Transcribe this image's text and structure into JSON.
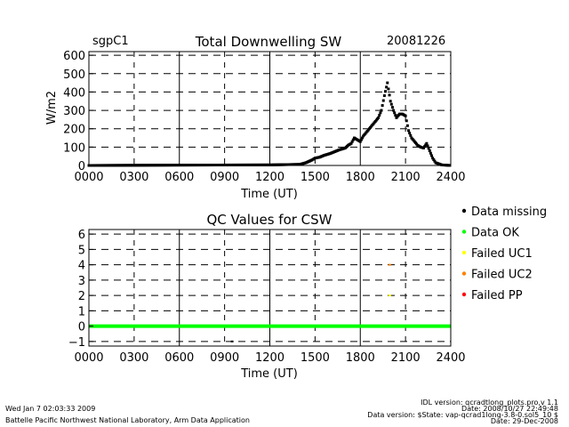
{
  "header": {
    "site": "sgpC1",
    "date": "20081226"
  },
  "chart_data": [
    {
      "type": "scatter",
      "title": "Total Downwelling SW",
      "xlabel": "Time (UT)",
      "ylabel": "W/m2",
      "xlim": [
        0,
        2400
      ],
      "ylim": [
        0,
        620
      ],
      "x_ticks": [
        0,
        300,
        600,
        900,
        1200,
        1500,
        1800,
        2100,
        2400
      ],
      "x_tick_labels": [
        "0000",
        "0300",
        "0600",
        "0900",
        "1200",
        "1500",
        "1800",
        "2100",
        "2400"
      ],
      "y_ticks": [
        0,
        100,
        200,
        300,
        400,
        500,
        600
      ],
      "y_tick_labels": [
        "0",
        "100",
        "200",
        "300",
        "400",
        "500",
        "600"
      ],
      "grid": true,
      "series": [
        {
          "name": "Total Downwelling SW",
          "x": [
            0,
            600,
            1200,
            1400,
            1440,
            1480,
            1500,
            1530,
            1560,
            1600,
            1630,
            1660,
            1700,
            1720,
            1740,
            1760,
            1780,
            1800,
            1820,
            1840,
            1860,
            1880,
            1900,
            1920,
            1940,
            1960,
            1980,
            2000,
            2020,
            2040,
            2060,
            2080,
            2100,
            2120,
            2140,
            2160,
            2180,
            2200,
            2220,
            2240,
            2260,
            2280,
            2300,
            2340,
            2400
          ],
          "y": [
            0,
            2,
            3,
            6,
            15,
            30,
            40,
            45,
            55,
            65,
            75,
            85,
            95,
            110,
            120,
            150,
            140,
            130,
            160,
            180,
            200,
            220,
            240,
            260,
            300,
            380,
            450,
            350,
            300,
            260,
            280,
            280,
            270,
            190,
            150,
            130,
            110,
            100,
            95,
            120,
            80,
            40,
            15,
            3,
            0
          ]
        }
      ]
    },
    {
      "type": "scatter",
      "title": "QC Values for CSW",
      "xlabel": "Time (UT)",
      "ylabel": "",
      "xlim": [
        0,
        2400
      ],
      "ylim": [
        -1.3,
        6.3
      ],
      "x_ticks": [
        0,
        300,
        600,
        900,
        1200,
        1500,
        1800,
        2100,
        2400
      ],
      "x_tick_labels": [
        "0000",
        "0300",
        "0600",
        "0900",
        "1200",
        "1500",
        "1800",
        "2100",
        "2400"
      ],
      "y_ticks": [
        -1,
        0,
        1,
        2,
        3,
        4,
        5,
        6
      ],
      "y_tick_labels": [
        "−1",
        "0",
        "1",
        "2",
        "3",
        "4",
        "5",
        "6"
      ],
      "grid": true,
      "series": [
        {
          "name": "Data OK",
          "color": "#00ff00",
          "line": {
            "x": [
              0,
              2400
            ],
            "y": [
              0,
              0
            ]
          }
        },
        {
          "name": "Data missing",
          "color": "#000000",
          "points": [
            {
              "x": 950,
              "y": -1
            }
          ]
        },
        {
          "name": "Failed UC1",
          "color": "#ffff00",
          "points": [
            {
              "x": 1995,
              "y": 2
            }
          ]
        },
        {
          "name": "Failed UC2",
          "color": "#ff8000",
          "points": [
            {
              "x": 1995,
              "y": 4
            }
          ]
        }
      ]
    }
  ],
  "legend": [
    {
      "label": "Data missing",
      "color": "#000000"
    },
    {
      "label": "Data OK",
      "color": "#00ff00"
    },
    {
      "label": "Failed UC1",
      "color": "#ffff00"
    },
    {
      "label": "Failed UC2",
      "color": "#ff8000"
    },
    {
      "label": "Failed PP",
      "color": "#ff0000"
    }
  ],
  "footer": {
    "timestamp": "Wed Jan  7 02:03:33 2009",
    "org": "Battelle Pacific Northwest National Laboratory, Arm Data Application",
    "idl_version": "IDL version: qcradtlong_plots.pro,v 1.1",
    "idl_date": "Date: 2008/10/27 22:49:48",
    "data_version": "Data version: $State: vap-qcrad1long-3.8-0.sol5_10 $",
    "data_date": "Date: 29-Dec-2008"
  }
}
